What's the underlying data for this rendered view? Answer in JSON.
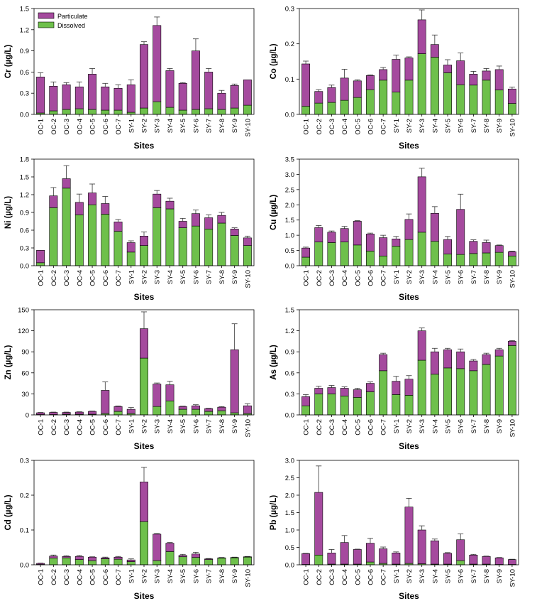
{
  "figure": {
    "colors": {
      "particulate": "#a54a9e",
      "dissolved": "#6ec04b",
      "error": "#333333"
    },
    "legend": {
      "particulate": "Particulate",
      "dissolved": "Dissolved"
    }
  },
  "chart_data": [
    {
      "id": "cr",
      "type": "bar",
      "stacked": true,
      "ylabel": "Cr (µg/L)",
      "xlabel": "Sites",
      "categories": [
        "OC-1",
        "OC-2",
        "OC-3",
        "OC-4",
        "OC-5",
        "OC-6",
        "OC-7",
        "SY-1",
        "SY-2",
        "SY-3",
        "SY-4",
        "SY-5",
        "SY-6",
        "SY-7",
        "SY-8",
        "SY-9",
        "SY-10"
      ],
      "ylim": [
        0,
        1.5
      ],
      "yticks": [
        "0.0",
        "0.3",
        "0.6",
        "0.9",
        "1.2",
        "1.5"
      ],
      "series": [
        {
          "name": "Dissolved",
          "values": [
            0.02,
            0.05,
            0.07,
            0.08,
            0.07,
            0.06,
            0.06,
            0.03,
            0.09,
            0.18,
            0.1,
            0.06,
            0.07,
            0.08,
            0.07,
            0.09,
            0.13
          ]
        },
        {
          "name": "Particulate",
          "values": [
            0.51,
            0.35,
            0.35,
            0.31,
            0.5,
            0.33,
            0.31,
            0.39,
            0.9,
            1.08,
            0.52,
            0.38,
            0.83,
            0.52,
            0.23,
            0.32,
            0.36
          ]
        }
      ],
      "errors": [
        0.06,
        0.06,
        0.03,
        0.07,
        0.08,
        0.05,
        0.05,
        0.07,
        0.04,
        0.12,
        0.03,
        0.01,
        0.17,
        0.05,
        0.04,
        0.02,
        0.0
      ],
      "legend": true
    },
    {
      "id": "co",
      "type": "bar",
      "stacked": true,
      "ylabel": "Co (µg/L)",
      "xlabel": "Sites",
      "categories": [
        "OC-1",
        "OC-2",
        "OC-3",
        "OC-4",
        "OC-5",
        "OC-6",
        "OC-7",
        "SY-1",
        "SY-2",
        "SY-3",
        "SY-4",
        "SY-5",
        "SY-6",
        "SY-7",
        "SY-8",
        "SY-9",
        "SY-10"
      ],
      "ylim": [
        0,
        0.3
      ],
      "yticks": [
        "0.0",
        "0.1",
        "0.2",
        "0.3"
      ],
      "series": [
        {
          "name": "Dissolved",
          "values": [
            0.023,
            0.032,
            0.034,
            0.04,
            0.048,
            0.07,
            0.097,
            0.063,
            0.097,
            0.172,
            0.162,
            0.118,
            0.084,
            0.083,
            0.097,
            0.069,
            0.031
          ]
        },
        {
          "name": "Particulate",
          "values": [
            0.12,
            0.033,
            0.042,
            0.063,
            0.047,
            0.04,
            0.03,
            0.093,
            0.063,
            0.096,
            0.036,
            0.022,
            0.068,
            0.031,
            0.026,
            0.058,
            0.041
          ]
        }
      ],
      "errors": [
        0.008,
        0.005,
        0.007,
        0.025,
        0.003,
        0.002,
        0.006,
        0.012,
        0.003,
        0.028,
        0.027,
        0.015,
        0.022,
        0.008,
        0.007,
        0.01,
        0.005
      ],
      "legend": false
    },
    {
      "id": "ni",
      "type": "bar",
      "stacked": true,
      "ylabel": "Ni (µg/L)",
      "xlabel": "Sites",
      "categories": [
        "OC-1",
        "OC-2",
        "OC-3",
        "OC-4",
        "OC-5",
        "OC-6",
        "OC-7",
        "SY-1",
        "SY-2",
        "SY-3",
        "SY-4",
        "SY-5",
        "SY-6",
        "SY-7",
        "SY-8",
        "SY-9",
        "SY-10"
      ],
      "ylim": [
        0,
        1.8
      ],
      "yticks": [
        "0.0",
        "0.3",
        "0.6",
        "0.9",
        "1.2",
        "1.5",
        "1.8"
      ],
      "series": [
        {
          "name": "Dissolved",
          "values": [
            0.05,
            0.98,
            1.31,
            0.86,
            1.03,
            0.87,
            0.58,
            0.23,
            0.34,
            0.98,
            0.96,
            0.64,
            0.67,
            0.62,
            0.72,
            0.51,
            0.34
          ]
        },
        {
          "name": "Particulate",
          "values": [
            0.21,
            0.2,
            0.16,
            0.21,
            0.2,
            0.18,
            0.16,
            0.16,
            0.16,
            0.23,
            0.13,
            0.11,
            0.21,
            0.19,
            0.13,
            0.11,
            0.13
          ]
        }
      ],
      "errors": [
        0.0,
        0.14,
        0.22,
        0.14,
        0.15,
        0.12,
        0.04,
        0.03,
        0.07,
        0.06,
        0.05,
        0.05,
        0.06,
        0.05,
        0.05,
        0.02,
        0.03
      ],
      "legend": false
    },
    {
      "id": "cu",
      "type": "bar",
      "stacked": true,
      "ylabel": "Cu (µg/L)",
      "xlabel": "Sites",
      "categories": [
        "OC-1",
        "OC-2",
        "OC-3",
        "OC-4",
        "OC-5",
        "OC-6",
        "OC-7",
        "SY-1",
        "SY-2",
        "SY-3",
        "SY-4",
        "SY-5",
        "SY-6",
        "SY-7",
        "SY-8",
        "SY-9",
        "SY-10"
      ],
      "ylim": [
        0,
        3.5
      ],
      "yticks": [
        "0.0",
        "0.5",
        "1.0",
        "1.5",
        "2.0",
        "2.5",
        "3.0",
        "3.5"
      ],
      "series": [
        {
          "name": "Dissolved",
          "values": [
            0.28,
            0.78,
            0.76,
            0.78,
            0.68,
            0.48,
            0.32,
            0.64,
            0.86,
            1.1,
            0.8,
            0.38,
            0.37,
            0.4,
            0.42,
            0.44,
            0.32
          ]
        },
        {
          "name": "Particulate",
          "values": [
            0.3,
            0.47,
            0.34,
            0.44,
            0.78,
            0.56,
            0.6,
            0.24,
            0.66,
            1.82,
            0.92,
            0.48,
            1.48,
            0.4,
            0.34,
            0.22,
            0.14
          ]
        }
      ],
      "errors": [
        0.03,
        0.07,
        0.04,
        0.07,
        0.02,
        0.03,
        0.08,
        0.08,
        0.18,
        0.28,
        0.22,
        0.1,
        0.5,
        0.05,
        0.08,
        0.02,
        0.02
      ],
      "legend": false
    },
    {
      "id": "zn",
      "type": "bar",
      "stacked": true,
      "ylabel": "Zn (µg/L)",
      "xlabel": "Sites",
      "categories": [
        "OC-1",
        "OC-2",
        "OC-3",
        "OC-4",
        "OC-5",
        "OC-6",
        "OC-7",
        "SY-1",
        "SY-2",
        "SY-3",
        "SY-4",
        "SY-5",
        "SY-6",
        "SY-7",
        "SY-8",
        "SY-9",
        "SY-10"
      ],
      "ylim": [
        0,
        150
      ],
      "yticks": [
        "0",
        "30",
        "60",
        "90",
        "120",
        "150"
      ],
      "series": [
        {
          "name": "Dissolved",
          "values": [
            0.5,
            0.5,
            1,
            1,
            1,
            2,
            5,
            2,
            81,
            12,
            20,
            8,
            8,
            5,
            6,
            3,
            2
          ]
        },
        {
          "name": "Particulate",
          "values": [
            2.5,
            3,
            2.5,
            3,
            4,
            33,
            7,
            6,
            42,
            32,
            23,
            4,
            5,
            4,
            5,
            90,
            11
          ]
        }
      ],
      "errors": [
        0.5,
        0.5,
        0.5,
        0.5,
        0.5,
        12,
        0.8,
        2.5,
        24,
        1.5,
        5,
        0.5,
        1.5,
        0.5,
        0.8,
        37,
        3
      ],
      "legend": false
    },
    {
      "id": "as",
      "type": "bar",
      "stacked": true,
      "ylabel": "As (µg/L)",
      "xlabel": "Sites",
      "categories": [
        "OC-1",
        "OC-2",
        "OC-3",
        "OC-4",
        "OC-5",
        "OC-6",
        "OC-7",
        "SY-1",
        "SY-2",
        "SY-3",
        "SY-4",
        "SY-5",
        "SY-6",
        "SY-7",
        "SY-8",
        "SY-9",
        "SY-10"
      ],
      "ylim": [
        0,
        1.5
      ],
      "yticks": [
        "0.0",
        "0.3",
        "0.6",
        "0.9",
        "1.2",
        "1.5"
      ],
      "series": [
        {
          "name": "Dissolved",
          "values": [
            0.13,
            0.3,
            0.3,
            0.27,
            0.25,
            0.33,
            0.63,
            0.29,
            0.28,
            0.78,
            0.58,
            0.67,
            0.66,
            0.63,
            0.72,
            0.84,
            0.99
          ]
        },
        {
          "name": "Particulate",
          "values": [
            0.13,
            0.08,
            0.09,
            0.11,
            0.11,
            0.12,
            0.23,
            0.19,
            0.23,
            0.42,
            0.32,
            0.26,
            0.24,
            0.14,
            0.14,
            0.09,
            0.06
          ]
        }
      ],
      "errors": [
        0.03,
        0.03,
        0.03,
        0.02,
        0.02,
        0.02,
        0.02,
        0.07,
        0.05,
        0.04,
        0.05,
        0.02,
        0.04,
        0.02,
        0.02,
        0.02,
        0.01
      ],
      "legend": false
    },
    {
      "id": "cd",
      "type": "bar",
      "stacked": true,
      "ylabel": "Cd (µg/L)",
      "xlabel": "Sites",
      "categories": [
        "OC-1",
        "OC-2",
        "OC-3",
        "OC-4",
        "OC-5",
        "OC-6",
        "OC-7",
        "SY-1",
        "SY-2",
        "SY-3",
        "SY-4",
        "SY-5",
        "SY-6",
        "SY-7",
        "SY-8",
        "SY-9",
        "SY-10"
      ],
      "ylim": [
        0,
        0.3
      ],
      "yticks": [
        "0.0",
        "0.1",
        "0.2",
        "0.3"
      ],
      "series": [
        {
          "name": "Dissolved",
          "values": [
            0.001,
            0.019,
            0.02,
            0.015,
            0.012,
            0.017,
            0.016,
            0.009,
            0.124,
            0.012,
            0.038,
            0.023,
            0.021,
            0.015,
            0.019,
            0.02,
            0.022
          ]
        },
        {
          "name": "Particulate",
          "values": [
            0.003,
            0.006,
            0.004,
            0.009,
            0.01,
            0.003,
            0.006,
            0.005,
            0.114,
            0.076,
            0.024,
            0.004,
            0.01,
            0.002,
            0.001,
            0.001,
            0.001
          ]
        }
      ],
      "errors": [
        0.001,
        0.003,
        0.002,
        0.003,
        0.001,
        0.002,
        0.002,
        0.003,
        0.042,
        0.002,
        0.002,
        0.003,
        0.005,
        0.001,
        0.001,
        0.001,
        0.001
      ],
      "legend": false
    },
    {
      "id": "pb",
      "type": "bar",
      "stacked": true,
      "ylabel": "Pb (µg/L)",
      "xlabel": "Sites",
      "categories": [
        "OC-1",
        "OC-2",
        "OC-3",
        "OC-4",
        "OC-5",
        "OC-6",
        "OC-7",
        "SY-1",
        "SY-2",
        "SY-3",
        "SY-4",
        "SY-5",
        "SY-6",
        "SY-7",
        "SY-8",
        "SY-9",
        "SY-10"
      ],
      "ylim": [
        0,
        3.0
      ],
      "yticks": [
        "0.0",
        "0.5",
        "1.0",
        "1.5",
        "2.0",
        "2.5",
        "3.0"
      ],
      "series": [
        {
          "name": "Dissolved",
          "values": [
            0.01,
            0.28,
            0.02,
            0.02,
            0.02,
            0.08,
            0.04,
            0.02,
            0.04,
            0.03,
            0.02,
            0.02,
            0.12,
            0.02,
            0.02,
            0.01,
            0.01
          ]
        },
        {
          "name": "Particulate",
          "values": [
            0.31,
            1.8,
            0.32,
            0.62,
            0.42,
            0.54,
            0.42,
            0.32,
            1.62,
            0.97,
            0.67,
            0.31,
            0.6,
            0.26,
            0.22,
            0.19,
            0.14
          ]
        }
      ],
      "errors": [
        0.01,
        0.76,
        0.1,
        0.2,
        0.01,
        0.14,
        0.05,
        0.03,
        0.25,
        0.12,
        0.05,
        0.02,
        0.17,
        0.02,
        0.01,
        0.01,
        0.01
      ],
      "legend": false
    }
  ]
}
